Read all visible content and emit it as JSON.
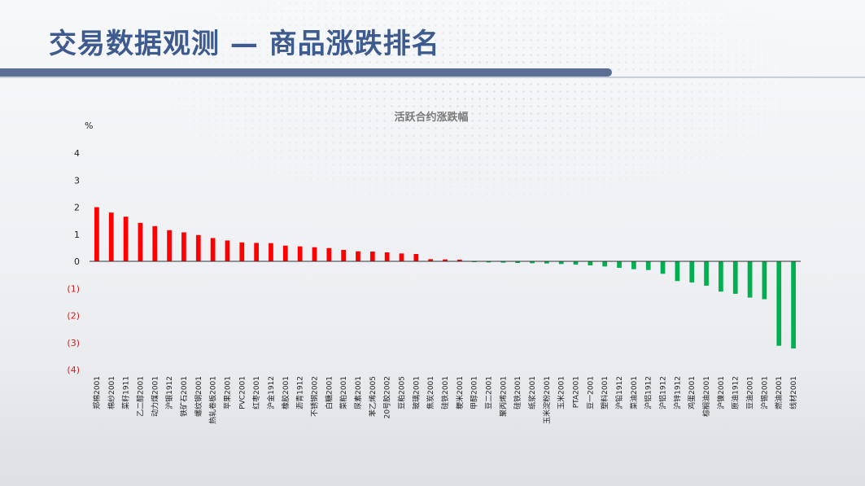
{
  "page": {
    "title": "交易数据观测 — 商品涨跌排名"
  },
  "colors": {
    "positive": "#ff0000",
    "negative": "#00b050",
    "title": "#3d5b8e"
  },
  "chart_data": {
    "type": "bar",
    "title": "活跃合约涨跌幅",
    "ylabel": "%",
    "ylim": [
      -4,
      4
    ],
    "yticks": [
      {
        "value": 4,
        "label": "4"
      },
      {
        "value": 3,
        "label": "3"
      },
      {
        "value": 2,
        "label": "2"
      },
      {
        "value": 1,
        "label": "1"
      },
      {
        "value": 0,
        "label": "0"
      },
      {
        "value": -1,
        "label": "(1)"
      },
      {
        "value": -2,
        "label": "(2)"
      },
      {
        "value": -3,
        "label": "(3)"
      },
      {
        "value": -4,
        "label": "(4)"
      }
    ],
    "grid": false,
    "categories": [
      "郑棉2001",
      "棉纱2001",
      "菜籽1911",
      "乙二醇2001",
      "动力煤2001",
      "沪银1912",
      "铁矿石2001",
      "螺纹钢2001",
      "热轧卷板2001",
      "苹果2001",
      "PVC2001",
      "红枣2001",
      "沪金1912",
      "橡胶2001",
      "沥青1912",
      "不锈钢2002",
      "白糖2001",
      "菜粕2001",
      "尿素2001",
      "苯乙烯2005",
      "20号胶2002",
      "豆粕2005",
      "玻璃2001",
      "焦炭2001",
      "硅铁2001",
      "粳米2001",
      "甲醇2001",
      "豆二2001",
      "聚丙烯2001",
      "硅铁2001",
      "纸浆2001",
      "玉米淀粉2001",
      "玉米2001",
      "PTA2001",
      "豆一2001",
      "塑料2001",
      "沪铅1912",
      "菜油2001",
      "沪铝1912",
      "沪铝1912",
      "沪锌1912",
      "鸡蛋2001",
      "棕榈油2001",
      "沪镍2001",
      "原油1912",
      "豆油2001",
      "沪锡2001",
      "燃油2001",
      "线材2001"
    ],
    "values": [
      2.0,
      1.8,
      1.65,
      1.42,
      1.3,
      1.15,
      1.07,
      0.97,
      0.86,
      0.77,
      0.7,
      0.68,
      0.67,
      0.58,
      0.55,
      0.52,
      0.49,
      0.42,
      0.37,
      0.36,
      0.33,
      0.29,
      0.27,
      0.08,
      0.07,
      0.06,
      -0.03,
      -0.04,
      -0.05,
      -0.06,
      -0.07,
      -0.08,
      -0.1,
      -0.12,
      -0.15,
      -0.19,
      -0.24,
      -0.29,
      -0.32,
      -0.46,
      -0.73,
      -0.78,
      -0.9,
      -1.12,
      -1.2,
      -1.34,
      -1.4,
      -3.12,
      -3.22
    ]
  }
}
